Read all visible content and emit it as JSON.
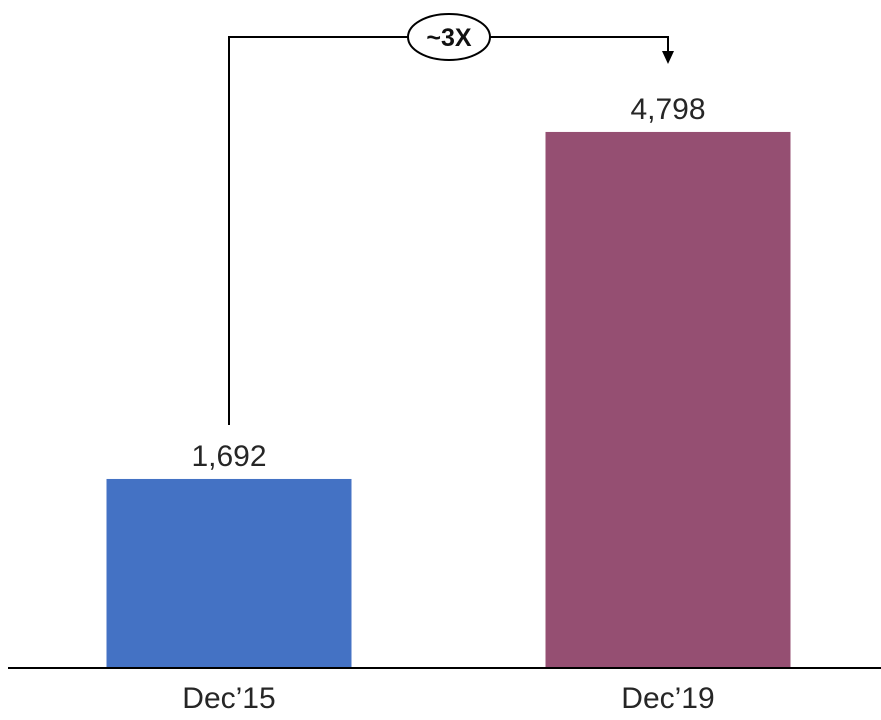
{
  "chart_data": {
    "type": "bar",
    "categories": [
      "Dec’15",
      "Dec’19"
    ],
    "values": [
      1692,
      4798
    ],
    "value_labels": [
      "1,692",
      "4,798"
    ],
    "bar_colors": [
      "#4472C4",
      "#954F72"
    ],
    "ylim": [
      0,
      5800
    ],
    "grid": false,
    "annotation": {
      "text": "~3X",
      "from_category": 0,
      "to_category": 1
    },
    "title": "",
    "xlabel": "",
    "ylabel": ""
  }
}
